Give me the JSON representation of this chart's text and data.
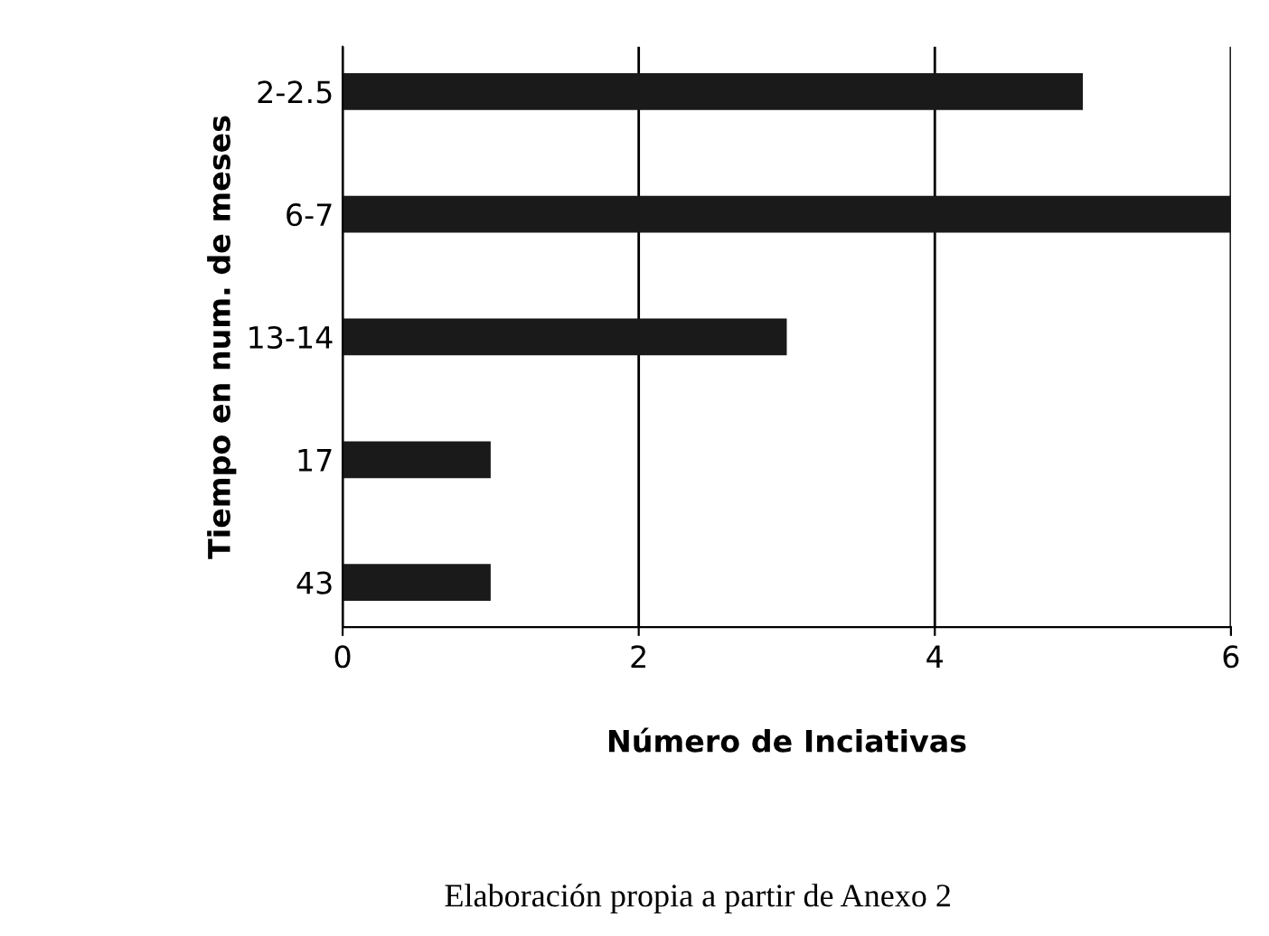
{
  "chart_data": {
    "type": "bar",
    "orientation": "horizontal",
    "categories": [
      "2-2.5",
      "6-7",
      "13-14",
      "17",
      "43"
    ],
    "values": [
      5,
      6,
      3,
      1,
      1
    ],
    "color": "#1a1a1a",
    "xlim": [
      0,
      6
    ],
    "xticks": [
      0,
      2,
      4,
      6
    ],
    "grid": "x",
    "xlabel": "Número de Inciativas",
    "ylabel": "Tiempo en num. de meses",
    "annotations": [
      "Elaboración propia a partir de Anexo 2"
    ]
  }
}
